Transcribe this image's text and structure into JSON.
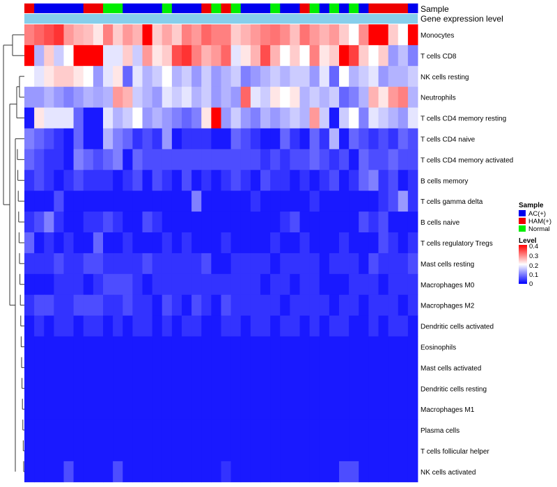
{
  "chart_data": {
    "type": "heatmap",
    "annotation_tracks": [
      "Sample",
      "Gene expression level"
    ],
    "sample_categories": [
      "AC(+)",
      "HAM(+)",
      "Normal"
    ],
    "sample_colors": {
      "AC(+)": "#0000ee",
      "HAM(+)": "#ee0000",
      "Normal": "#00ee00"
    },
    "gene_expression_color": "#87ceeb",
    "sample_groups": [
      "HAM(+)",
      "AC(+)",
      "AC(+)",
      "AC(+)",
      "AC(+)",
      "AC(+)",
      "HAM(+)",
      "HAM(+)",
      "Normal",
      "Normal",
      "AC(+)",
      "AC(+)",
      "AC(+)",
      "AC(+)",
      "Normal",
      "AC(+)",
      "AC(+)",
      "AC(+)",
      "HAM(+)",
      "Normal",
      "HAM(+)",
      "Normal",
      "AC(+)",
      "AC(+)",
      "AC(+)",
      "Normal",
      "AC(+)",
      "AC(+)",
      "HAM(+)",
      "Normal",
      "AC(+)",
      "Normal",
      "AC(+)",
      "Normal",
      "AC(+)",
      "HAM(+)",
      "HAM(+)",
      "HAM(+)",
      "HAM(+)",
      "AC(+)"
    ],
    "rows": [
      "Monocytes",
      "T cells CD8",
      "NK cells resting",
      "Neutrophils",
      "T cells CD4 memory resting",
      "T cells CD4 naive",
      "T cells CD4 memory activated",
      "B cells memory",
      "T cells gamma delta",
      "B cells naive",
      "T cells regulatory  Tregs",
      "Mast cells resting",
      "Macrophages M0",
      "Macrophages M2",
      "Dendritic cells activated",
      "Eosinophils",
      "Mast cells activated",
      "Dendritic cells resting",
      "Macrophages M1",
      "Plasma cells",
      "T cells follicular helper",
      "NK cells activated"
    ],
    "values": [
      [
        0.3,
        0.32,
        0.34,
        0.36,
        0.28,
        0.26,
        0.25,
        0.22,
        0.3,
        0.24,
        0.28,
        0.26,
        0.4,
        0.24,
        0.27,
        0.24,
        0.3,
        0.28,
        0.32,
        0.3,
        0.3,
        0.24,
        0.26,
        0.28,
        0.3,
        0.31,
        0.29,
        0.25,
        0.31,
        0.28,
        0.26,
        0.28,
        0.24,
        0.2,
        0.29,
        0.4,
        0.4,
        0.24,
        0.2,
        0.4
      ],
      [
        0.4,
        0.14,
        0.24,
        0.16,
        0.2,
        0.4,
        0.4,
        0.4,
        0.18,
        0.18,
        0.24,
        0.16,
        0.28,
        0.22,
        0.24,
        0.34,
        0.36,
        0.3,
        0.26,
        0.28,
        0.32,
        0.18,
        0.22,
        0.26,
        0.34,
        0.26,
        0.2,
        0.24,
        0.2,
        0.3,
        0.22,
        0.24,
        0.4,
        0.35,
        0.24,
        0.2,
        0.24,
        0.12,
        0.15,
        0.1
      ],
      [
        0.2,
        0.18,
        0.22,
        0.24,
        0.24,
        0.22,
        0.2,
        0.12,
        0.18,
        0.22,
        0.08,
        0.18,
        0.14,
        0.16,
        0.2,
        0.14,
        0.16,
        0.12,
        0.16,
        0.12,
        0.14,
        0.16,
        0.1,
        0.12,
        0.14,
        0.16,
        0.14,
        0.16,
        0.16,
        0.12,
        0.18,
        0.08,
        0.2,
        0.14,
        0.16,
        0.18,
        0.12,
        0.14,
        0.14,
        0.16
      ],
      [
        0.12,
        0.12,
        0.14,
        0.12,
        0.1,
        0.12,
        0.14,
        0.13,
        0.14,
        0.28,
        0.26,
        0.16,
        0.14,
        0.12,
        0.18,
        0.16,
        0.18,
        0.14,
        0.16,
        0.12,
        0.14,
        0.12,
        0.32,
        0.18,
        0.16,
        0.22,
        0.2,
        0.22,
        0.14,
        0.16,
        0.14,
        0.16,
        0.08,
        0.1,
        0.14,
        0.26,
        0.22,
        0.28,
        0.3,
        0.14
      ],
      [
        0.02,
        0.22,
        0.18,
        0.18,
        0.18,
        0.08,
        0.02,
        0.02,
        0.18,
        0.14,
        0.16,
        0.2,
        0.12,
        0.14,
        0.12,
        0.1,
        0.08,
        0.1,
        0.22,
        0.4,
        0.12,
        0.16,
        0.12,
        0.1,
        0.14,
        0.12,
        0.14,
        0.16,
        0.14,
        0.28,
        0.16,
        0.02,
        0.16,
        0.2,
        0.1,
        0.18,
        0.16,
        0.14,
        0.12,
        0.18
      ],
      [
        0.1,
        0.08,
        0.06,
        0.04,
        0.02,
        0.08,
        0.02,
        0.02,
        0.14,
        0.1,
        0.08,
        0.04,
        0.06,
        0.04,
        0.12,
        0.02,
        0.04,
        0.04,
        0.04,
        0.02,
        0.02,
        0.08,
        0.06,
        0.04,
        0.02,
        0.02,
        0.08,
        0.04,
        0.02,
        0.08,
        0.04,
        0.14,
        0.02,
        0.08,
        0.06,
        0.04,
        0.06,
        0.04,
        0.08,
        0.06
      ],
      [
        0.08,
        0.06,
        0.04,
        0.04,
        0.02,
        0.1,
        0.08,
        0.06,
        0.08,
        0.1,
        0.02,
        0.08,
        0.06,
        0.06,
        0.06,
        0.06,
        0.06,
        0.06,
        0.06,
        0.06,
        0.06,
        0.06,
        0.06,
        0.06,
        0.04,
        0.06,
        0.04,
        0.06,
        0.06,
        0.08,
        0.06,
        0.04,
        0.06,
        0.02,
        0.08,
        0.06,
        0.06,
        0.08,
        0.06,
        0.06
      ],
      [
        0.04,
        0.06,
        0.04,
        0.02,
        0.04,
        0.06,
        0.04,
        0.04,
        0.04,
        0.02,
        0.04,
        0.06,
        0.02,
        0.06,
        0.04,
        0.02,
        0.06,
        0.02,
        0.04,
        0.02,
        0.04,
        0.06,
        0.04,
        0.02,
        0.06,
        0.04,
        0.04,
        0.02,
        0.04,
        0.02,
        0.04,
        0.06,
        0.02,
        0.04,
        0.08,
        0.1,
        0.04,
        0.06,
        0.02,
        0.04
      ],
      [
        0.02,
        0.02,
        0.02,
        0.06,
        0.02,
        0.02,
        0.02,
        0.02,
        0.02,
        0.02,
        0.02,
        0.02,
        0.02,
        0.02,
        0.02,
        0.02,
        0.02,
        0.1,
        0.02,
        0.02,
        0.02,
        0.02,
        0.02,
        0.04,
        0.02,
        0.02,
        0.02,
        0.02,
        0.02,
        0.04,
        0.02,
        0.02,
        0.02,
        0.02,
        0.02,
        0.02,
        0.04,
        0.06,
        0.12,
        0.04
      ],
      [
        0.04,
        0.06,
        0.1,
        0.04,
        0.02,
        0.02,
        0.04,
        0.04,
        0.06,
        0.04,
        0.02,
        0.02,
        0.06,
        0.04,
        0.02,
        0.02,
        0.02,
        0.02,
        0.02,
        0.02,
        0.02,
        0.02,
        0.02,
        0.02,
        0.02,
        0.02,
        0.04,
        0.06,
        0.02,
        0.02,
        0.02,
        0.02,
        0.02,
        0.02,
        0.06,
        0.04,
        0.06,
        0.02,
        0.02,
        0.02
      ],
      [
        0.08,
        0.02,
        0.04,
        0.02,
        0.04,
        0.02,
        0.02,
        0.08,
        0.02,
        0.02,
        0.04,
        0.02,
        0.02,
        0.02,
        0.04,
        0.02,
        0.04,
        0.02,
        0.02,
        0.02,
        0.04,
        0.02,
        0.02,
        0.02,
        0.02,
        0.04,
        0.02,
        0.02,
        0.04,
        0.02,
        0.02,
        0.02,
        0.04,
        0.02,
        0.02,
        0.02,
        0.06,
        0.04,
        0.02,
        0.04
      ],
      [
        0.04,
        0.04,
        0.04,
        0.06,
        0.04,
        0.04,
        0.06,
        0.06,
        0.04,
        0.04,
        0.04,
        0.04,
        0.06,
        0.04,
        0.04,
        0.04,
        0.04,
        0.04,
        0.06,
        0.02,
        0.02,
        0.04,
        0.04,
        0.04,
        0.04,
        0.02,
        0.04,
        0.04,
        0.04,
        0.04,
        0.02,
        0.04,
        0.04,
        0.04,
        0.02,
        0.06,
        0.04,
        0.04,
        0.04,
        0.06
      ],
      [
        0.02,
        0.02,
        0.02,
        0.04,
        0.04,
        0.04,
        0.02,
        0.04,
        0.06,
        0.06,
        0.06,
        0.04,
        0.02,
        0.04,
        0.04,
        0.04,
        0.04,
        0.04,
        0.04,
        0.04,
        0.04,
        0.04,
        0.04,
        0.04,
        0.02,
        0.04,
        0.04,
        0.02,
        0.04,
        0.04,
        0.02,
        0.02,
        0.02,
        0.04,
        0.04,
        0.04,
        0.02,
        0.04,
        0.04,
        0.04
      ],
      [
        0.04,
        0.06,
        0.06,
        0.04,
        0.04,
        0.06,
        0.06,
        0.06,
        0.04,
        0.04,
        0.06,
        0.04,
        0.04,
        0.02,
        0.06,
        0.04,
        0.02,
        0.06,
        0.04,
        0.02,
        0.06,
        0.04,
        0.04,
        0.04,
        0.04,
        0.04,
        0.02,
        0.04,
        0.04,
        0.04,
        0.04,
        0.02,
        0.04,
        0.04,
        0.02,
        0.04,
        0.04,
        0.04,
        0.02,
        0.04
      ],
      [
        0.02,
        0.04,
        0.02,
        0.04,
        0.04,
        0.02,
        0.04,
        0.04,
        0.02,
        0.04,
        0.02,
        0.04,
        0.04,
        0.02,
        0.04,
        0.02,
        0.04,
        0.04,
        0.02,
        0.02,
        0.04,
        0.04,
        0.02,
        0.04,
        0.04,
        0.02,
        0.04,
        0.04,
        0.02,
        0.04,
        0.02,
        0.04,
        0.04,
        0.02,
        0.02,
        0.04,
        0.02,
        0.04,
        0.04,
        0.02
      ],
      [
        0.02,
        0.02,
        0.02,
        0.02,
        0.02,
        0.02,
        0.02,
        0.02,
        0.02,
        0.02,
        0.02,
        0.02,
        0.02,
        0.02,
        0.02,
        0.02,
        0.02,
        0.02,
        0.02,
        0.02,
        0.02,
        0.02,
        0.02,
        0.02,
        0.02,
        0.02,
        0.02,
        0.02,
        0.02,
        0.02,
        0.02,
        0.02,
        0.02,
        0.02,
        0.02,
        0.02,
        0.02,
        0.02,
        0.02,
        0.02
      ],
      [
        0.02,
        0.02,
        0.02,
        0.02,
        0.02,
        0.02,
        0.02,
        0.02,
        0.02,
        0.02,
        0.02,
        0.02,
        0.02,
        0.02,
        0.02,
        0.02,
        0.02,
        0.02,
        0.02,
        0.02,
        0.02,
        0.02,
        0.02,
        0.02,
        0.02,
        0.02,
        0.02,
        0.02,
        0.02,
        0.02,
        0.02,
        0.02,
        0.02,
        0.02,
        0.02,
        0.02,
        0.02,
        0.02,
        0.02,
        0.02
      ],
      [
        0.02,
        0.02,
        0.02,
        0.02,
        0.02,
        0.02,
        0.02,
        0.02,
        0.02,
        0.02,
        0.02,
        0.02,
        0.02,
        0.02,
        0.02,
        0.02,
        0.02,
        0.02,
        0.02,
        0.02,
        0.02,
        0.02,
        0.02,
        0.02,
        0.02,
        0.02,
        0.02,
        0.02,
        0.02,
        0.02,
        0.02,
        0.02,
        0.02,
        0.02,
        0.02,
        0.02,
        0.02,
        0.02,
        0.02,
        0.02
      ],
      [
        0.02,
        0.02,
        0.02,
        0.02,
        0.02,
        0.02,
        0.02,
        0.02,
        0.02,
        0.02,
        0.02,
        0.02,
        0.02,
        0.02,
        0.02,
        0.02,
        0.02,
        0.02,
        0.02,
        0.02,
        0.02,
        0.02,
        0.02,
        0.02,
        0.02,
        0.02,
        0.02,
        0.02,
        0.02,
        0.02,
        0.02,
        0.02,
        0.02,
        0.02,
        0.02,
        0.02,
        0.02,
        0.02,
        0.02,
        0.02
      ],
      [
        0.02,
        0.02,
        0.02,
        0.02,
        0.02,
        0.02,
        0.02,
        0.02,
        0.02,
        0.02,
        0.02,
        0.02,
        0.02,
        0.02,
        0.02,
        0.02,
        0.02,
        0.02,
        0.02,
        0.02,
        0.02,
        0.02,
        0.02,
        0.02,
        0.02,
        0.02,
        0.02,
        0.02,
        0.02,
        0.02,
        0.02,
        0.02,
        0.02,
        0.02,
        0.02,
        0.02,
        0.02,
        0.02,
        0.02,
        0.02
      ],
      [
        0.02,
        0.02,
        0.02,
        0.02,
        0.02,
        0.02,
        0.02,
        0.02,
        0.02,
        0.02,
        0.02,
        0.02,
        0.02,
        0.02,
        0.02,
        0.02,
        0.02,
        0.02,
        0.02,
        0.02,
        0.02,
        0.02,
        0.02,
        0.02,
        0.02,
        0.02,
        0.02,
        0.02,
        0.02,
        0.02,
        0.02,
        0.02,
        0.02,
        0.02,
        0.02,
        0.02,
        0.02,
        0.02,
        0.02,
        0.02
      ],
      [
        0.02,
        0.02,
        0.02,
        0.02,
        0.06,
        0.02,
        0.02,
        0.02,
        0.02,
        0.06,
        0.02,
        0.02,
        0.02,
        0.02,
        0.02,
        0.02,
        0.02,
        0.02,
        0.02,
        0.02,
        0.04,
        0.02,
        0.02,
        0.02,
        0.02,
        0.02,
        0.02,
        0.02,
        0.02,
        0.02,
        0.02,
        0.02,
        0.06,
        0.06,
        0.02,
        0.02,
        0.02,
        0.02,
        0.02,
        0.02
      ]
    ],
    "color_scale": {
      "min": 0,
      "max": 0.4,
      "low": "#0000ff",
      "mid": "#ffffff",
      "high": "#ff0000"
    },
    "legend": {
      "sample_title": "Sample",
      "level_title": "Level",
      "level_ticks": [
        "0.4",
        "0.3",
        "0.2",
        "0.1",
        "0"
      ]
    },
    "dendrogram_side": "left"
  }
}
